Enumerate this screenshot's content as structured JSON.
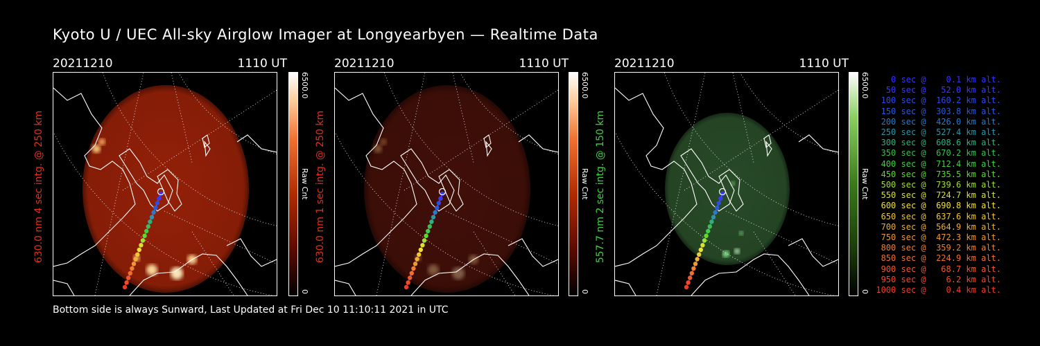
{
  "title": "Kyoto U / UEC All-sky Airglow Imager at Longyearbyen — Realtime Data",
  "footer": "Bottom side is always Sunward, Last Updated at Fri Dec 10 11:10:11 2021 in UTC",
  "panels": [
    {
      "date": "20211210",
      "time": "1110 UT",
      "ylabel": "630.0 nm 4 sec intg. @ 250 km",
      "ylabel_color": "#e0301c",
      "cbar_max": "6500.0",
      "cbar_min": "0",
      "cbar_unit": "Raw Cnt",
      "tint": "red",
      "brightness": 0.85
    },
    {
      "date": "20211210",
      "time": "1110 UT",
      "ylabel": "630.0 nm 1 sec intg. @ 250 km",
      "ylabel_color": "#e0301c",
      "cbar_max": "6500.0",
      "cbar_min": "0",
      "cbar_unit": "Raw Cnt",
      "tint": "red",
      "brightness": 0.3
    },
    {
      "date": "20211210",
      "time": "1110 UT",
      "ylabel": "557.7 nm 2 sec intg. @ 150 km",
      "ylabel_color": "#3fd43f",
      "cbar_max": "6500.0",
      "cbar_min": "0",
      "cbar_unit": "Raw Cnt",
      "tint": "green",
      "brightness": 0.5
    }
  ],
  "legend": [
    {
      "text": "   0 sec @    0.1 km alt.",
      "color": "#3333ff"
    },
    {
      "text": "  50 sec @   52.0 km alt.",
      "color": "#3a3aff"
    },
    {
      "text": " 100 sec @  160.2 km alt.",
      "color": "#2d4be6"
    },
    {
      "text": " 150 sec @  303.8 km alt.",
      "color": "#2a5ad8"
    },
    {
      "text": " 200 sec @  426.0 km alt.",
      "color": "#2a7ac8"
    },
    {
      "text": " 250 sec @  527.4 km alt.",
      "color": "#2a96a8"
    },
    {
      "text": " 300 sec @  608.6 km alt.",
      "color": "#30b080"
    },
    {
      "text": " 350 sec @  670.2 km alt.",
      "color": "#38c050"
    },
    {
      "text": " 400 sec @  712.4 km alt.",
      "color": "#40d040"
    },
    {
      "text": " 450 sec @  735.5 km alt.",
      "color": "#60d830"
    },
    {
      "text": " 500 sec @  739.6 km alt.",
      "color": "#a0e030"
    },
    {
      "text": " 550 sec @  724.7 km alt.",
      "color": "#d8e030"
    },
    {
      "text": " 600 sec @  690.8 km alt.",
      "color": "#f0e030"
    },
    {
      "text": " 650 sec @  637.6 km alt.",
      "color": "#f0c830"
    },
    {
      "text": " 700 sec @  564.9 km alt.",
      "color": "#f0b030"
    },
    {
      "text": " 750 sec @  472.3 km alt.",
      "color": "#f09830"
    },
    {
      "text": " 800 sec @  359.2 km alt.",
      "color": "#f08030"
    },
    {
      "text": " 850 sec @  224.9 km alt.",
      "color": "#f07030"
    },
    {
      "text": " 900 sec @   68.7 km alt.",
      "color": "#f05a2a"
    },
    {
      "text": " 950 sec @    6.2 km alt.",
      "color": "#f04a28"
    },
    {
      "text": "1000 sec @    0.4 km alt.",
      "color": "#f03a24"
    }
  ]
}
